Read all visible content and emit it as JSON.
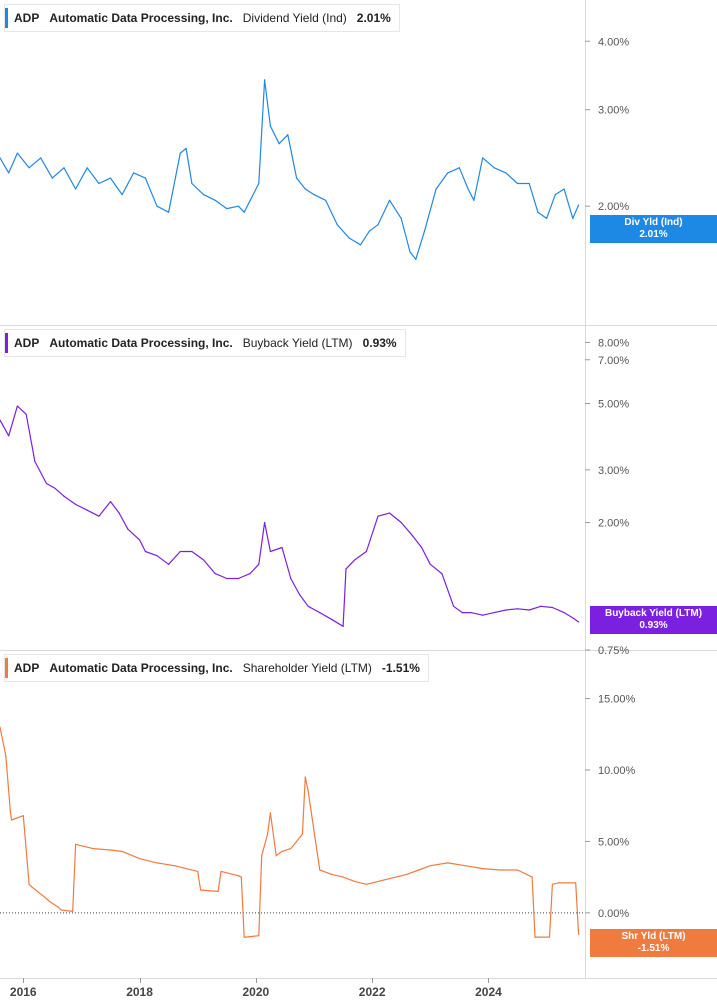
{
  "colors": {
    "div": "#1e88e5",
    "buyback": "#7b1fe0",
    "shareholder": "#f07b3f"
  },
  "chart_data": [
    {
      "type": "line",
      "ticker": "ADP",
      "company": "Automatic Data Processing, Inc.",
      "metric": "Dividend Yield (Ind)",
      "current": "2.01%",
      "flag_label": "Div Yld (Ind)",
      "flag_value": "2.01%",
      "scale": "log",
      "ylim": [
        1.25,
        4.6
      ],
      "ticks": [
        {
          "v": 4.0,
          "label": "4.00%"
        },
        {
          "v": 3.0,
          "label": "3.00%"
        },
        {
          "v": 2.0,
          "label": "2.00%"
        }
      ],
      "x": [
        2015.6,
        2015.75,
        2015.9,
        2016.1,
        2016.3,
        2016.5,
        2016.7,
        2016.9,
        2017.1,
        2017.3,
        2017.5,
        2017.7,
        2017.9,
        2018.1,
        2018.3,
        2018.5,
        2018.7,
        2018.8,
        2018.9,
        2019.1,
        2019.3,
        2019.5,
        2019.7,
        2019.8,
        2020.05,
        2020.15,
        2020.25,
        2020.4,
        2020.55,
        2020.7,
        2020.85,
        2021.0,
        2021.2,
        2021.4,
        2021.6,
        2021.8,
        2021.95,
        2022.1,
        2022.3,
        2022.5,
        2022.65,
        2022.75,
        2022.9,
        2023.1,
        2023.3,
        2023.5,
        2023.65,
        2023.75,
        2023.9,
        2024.1,
        2024.3,
        2024.5,
        2024.7,
        2024.85,
        2025.0,
        2025.15,
        2025.3,
        2025.45,
        2025.55
      ],
      "values": [
        2.45,
        2.3,
        2.5,
        2.35,
        2.45,
        2.25,
        2.35,
        2.15,
        2.35,
        2.2,
        2.25,
        2.1,
        2.3,
        2.25,
        2.0,
        1.95,
        2.5,
        2.55,
        2.2,
        2.1,
        2.05,
        1.98,
        2.0,
        1.95,
        2.2,
        3.4,
        2.8,
        2.6,
        2.7,
        2.25,
        2.15,
        2.1,
        2.05,
        1.85,
        1.75,
        1.7,
        1.8,
        1.85,
        2.05,
        1.9,
        1.65,
        1.6,
        1.8,
        2.15,
        2.3,
        2.35,
        2.15,
        2.05,
        2.45,
        2.35,
        2.3,
        2.2,
        2.2,
        1.95,
        1.9,
        2.1,
        2.15,
        1.9,
        2.01
      ]
    },
    {
      "type": "line",
      "ticker": "ADP",
      "company": "Automatic Data Processing, Inc.",
      "metric": "Buyback Yield (LTM)",
      "current": "0.93%",
      "flag_label": "Buyback Yield (LTM)",
      "flag_value": "0.93%",
      "scale": "log",
      "ylim": [
        0.75,
        8.6
      ],
      "ticks": [
        {
          "v": 8.0,
          "label": "8.00%"
        },
        {
          "v": 7.0,
          "label": "7.00%"
        },
        {
          "v": 5.0,
          "label": "5.00%"
        },
        {
          "v": 3.0,
          "label": "3.00%"
        },
        {
          "v": 2.0,
          "label": "2.00%"
        },
        {
          "v": 0.75,
          "label": "0.75%"
        }
      ],
      "x": [
        2015.6,
        2015.75,
        2015.9,
        2016.05,
        2016.2,
        2016.4,
        2016.55,
        2016.7,
        2016.9,
        2017.1,
        2017.3,
        2017.5,
        2017.65,
        2017.8,
        2018.0,
        2018.1,
        2018.3,
        2018.5,
        2018.7,
        2018.9,
        2019.1,
        2019.3,
        2019.5,
        2019.7,
        2019.9,
        2020.05,
        2020.15,
        2020.25,
        2020.45,
        2020.6,
        2020.75,
        2020.9,
        2021.1,
        2021.3,
        2021.5,
        2021.55,
        2021.7,
        2021.9,
        2022.1,
        2022.3,
        2022.5,
        2022.7,
        2022.85,
        2023.0,
        2023.2,
        2023.4,
        2023.55,
        2023.7,
        2023.9,
        2024.1,
        2024.3,
        2024.5,
        2024.7,
        2024.9,
        2025.1,
        2025.3,
        2025.45,
        2025.55
      ],
      "values": [
        4.4,
        3.9,
        4.9,
        4.6,
        3.2,
        2.7,
        2.6,
        2.45,
        2.3,
        2.2,
        2.1,
        2.35,
        2.15,
        1.9,
        1.75,
        1.6,
        1.55,
        1.45,
        1.6,
        1.6,
        1.5,
        1.35,
        1.3,
        1.3,
        1.35,
        1.45,
        2.0,
        1.6,
        1.65,
        1.3,
        1.15,
        1.05,
        1.0,
        0.95,
        0.9,
        1.4,
        1.5,
        1.6,
        2.1,
        2.15,
        2.0,
        1.8,
        1.65,
        1.45,
        1.35,
        1.05,
        1.0,
        1.0,
        0.98,
        1.0,
        1.02,
        1.03,
        1.02,
        1.05,
        1.04,
        1.0,
        0.96,
        0.93
      ]
    },
    {
      "type": "line",
      "ticker": "ADP",
      "company": "Automatic Data Processing, Inc.",
      "metric": "Shareholder Yield (LTM)",
      "current": "-1.51%",
      "flag_label": "Shr Yld (LTM)",
      "flag_value": "-1.51%",
      "scale": "linear",
      "ylim": [
        -3.3,
        17.7
      ],
      "ticks": [
        {
          "v": 15,
          "label": "15.00%"
        },
        {
          "v": 10,
          "label": "10.00%"
        },
        {
          "v": 5,
          "label": "5.00%"
        },
        {
          "v": 0,
          "label": "0.00%"
        }
      ],
      "x": [
        2015.6,
        2015.7,
        2015.78,
        2015.8,
        2016.0,
        2016.1,
        2016.15,
        2016.4,
        2016.45,
        2016.6,
        2016.65,
        2016.85,
        2016.9,
        2017.2,
        2017.5,
        2017.7,
        2018.0,
        2018.3,
        2018.6,
        2018.8,
        2019.0,
        2019.05,
        2019.35,
        2019.4,
        2019.7,
        2019.75,
        2019.8,
        2019.82,
        2020.05,
        2020.1,
        2020.2,
        2020.25,
        2020.35,
        2020.45,
        2020.6,
        2020.8,
        2020.85,
        2020.9,
        2021.1,
        2021.3,
        2021.5,
        2021.7,
        2021.9,
        2022.0,
        2022.3,
        2022.6,
        2022.8,
        2023.0,
        2023.3,
        2023.6,
        2023.9,
        2024.2,
        2024.5,
        2024.75,
        2024.8,
        2025.05,
        2025.1,
        2025.2,
        2025.5,
        2025.55
      ],
      "values": [
        13.0,
        11.0,
        7.0,
        6.5,
        6.8,
        2.0,
        1.8,
        1.0,
        0.8,
        0.4,
        0.2,
        0.1,
        4.8,
        4.5,
        4.4,
        4.3,
        3.8,
        3.5,
        3.3,
        3.1,
        2.9,
        1.6,
        1.5,
        2.9,
        2.6,
        2.5,
        -1.7,
        -1.7,
        -1.6,
        4.0,
        5.5,
        7.0,
        4.0,
        4.3,
        4.5,
        5.5,
        9.5,
        8.5,
        3.0,
        2.7,
        2.5,
        2.2,
        2.0,
        2.1,
        2.4,
        2.7,
        3.0,
        3.3,
        3.5,
        3.3,
        3.1,
        3.0,
        3.0,
        2.5,
        -1.7,
        -1.7,
        2.0,
        2.1,
        2.1,
        -1.51
      ]
    }
  ],
  "x_axis": {
    "ticks": [
      {
        "year": 2016,
        "label": "2016"
      },
      {
        "year": 2018,
        "label": "2018"
      },
      {
        "year": 2020,
        "label": "2020"
      },
      {
        "year": 2022,
        "label": "2022"
      },
      {
        "year": 2024,
        "label": "2024"
      }
    ]
  }
}
